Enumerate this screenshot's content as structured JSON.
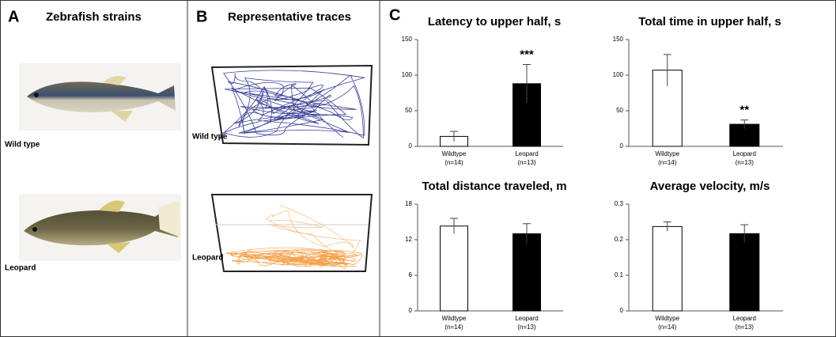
{
  "figure": {
    "panel_a": {
      "letter": "A",
      "title": "Zebrafish strains",
      "labels": [
        "Wild type",
        "Leopard"
      ]
    },
    "panel_b": {
      "letter": "B",
      "title": "Representative traces",
      "labels": [
        "Wild type",
        "Leopard"
      ]
    },
    "panel_c": {
      "letter": "C"
    }
  },
  "chart_data": [
    {
      "type": "bar",
      "title": "Latency to upper half, s",
      "categories": [
        "Wildtype",
        "Leopard"
      ],
      "category_counts": [
        "(n=14)",
        "(n=13)"
      ],
      "values": [
        14,
        88
      ],
      "errors": [
        7,
        27
      ],
      "colors": [
        "#ffffff",
        "#000000"
      ],
      "value_annotations": [
        null,
        "***"
      ],
      "ylim": [
        0,
        150
      ],
      "yticks": [
        0,
        50,
        100,
        150
      ]
    },
    {
      "type": "bar",
      "title": "Total time in upper half, s",
      "categories": [
        "Wildtype",
        "Leopard"
      ],
      "category_counts": [
        "(n=14)",
        "(n=13)"
      ],
      "values": [
        107,
        31
      ],
      "errors": [
        22,
        6
      ],
      "colors": [
        "#ffffff",
        "#000000"
      ],
      "value_annotations": [
        null,
        "**"
      ],
      "ylim": [
        0,
        150
      ],
      "yticks": [
        0,
        50,
        100,
        150
      ]
    },
    {
      "type": "bar",
      "title": "Total distance traveled, m",
      "categories": [
        "Wildtype",
        "Leopard"
      ],
      "category_counts": [
        "(n=14)",
        "(n=13)"
      ],
      "values": [
        14.3,
        13
      ],
      "errors": [
        1.3,
        1.7
      ],
      "colors": [
        "#ffffff",
        "#000000"
      ],
      "ylim": [
        0,
        18
      ],
      "yticks": [
        0,
        6,
        12,
        18
      ]
    },
    {
      "type": "bar",
      "title": "Average velocity, m/s",
      "categories": [
        "Wildtype",
        "Leopard"
      ],
      "category_counts": [
        "(n=14)",
        "(n=13)"
      ],
      "values": [
        0.237,
        0.217
      ],
      "errors": [
        0.013,
        0.025
      ],
      "colors": [
        "#ffffff",
        "#000000"
      ],
      "ylim": [
        0,
        0.3
      ],
      "yticks": [
        0,
        0.1,
        0.2,
        0.3
      ]
    }
  ]
}
